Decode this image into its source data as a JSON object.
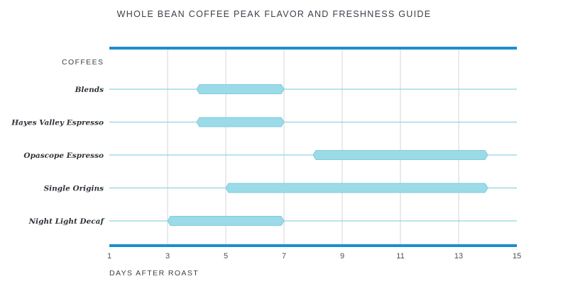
{
  "chart_data": {
    "type": "bar",
    "orientation": "horizontal-range",
    "title": "WHOLE BEAN COFFEE PEAK FLAVOR AND FRESHNESS GUIDE",
    "ylabel": "COFFEES",
    "xlabel": "DAYS AFTER ROAST",
    "xlim": [
      1,
      15
    ],
    "xticks": [
      1,
      3,
      5,
      7,
      9,
      11,
      13,
      15
    ],
    "grid": true,
    "colors": {
      "bar": "#9bdbe8",
      "bar_stroke": "#7fcbdc",
      "row_line": "#8fd3e2",
      "frame": "#1a8fd0",
      "grid": "#d3d6d9"
    },
    "categories": [
      "Blends",
      "Hayes Valley Espresso",
      "Opascope Espresso",
      "Single Origins",
      "Night Light Decaf"
    ],
    "ranges": [
      {
        "name": "Blends",
        "start": 4,
        "end": 7
      },
      {
        "name": "Hayes Valley Espresso",
        "start": 4,
        "end": 7
      },
      {
        "name": "Opascope Espresso",
        "start": 8,
        "end": 14
      },
      {
        "name": "Single Origins",
        "start": 5,
        "end": 14
      },
      {
        "name": "Night Light Decaf",
        "start": 3,
        "end": 7
      }
    ]
  }
}
